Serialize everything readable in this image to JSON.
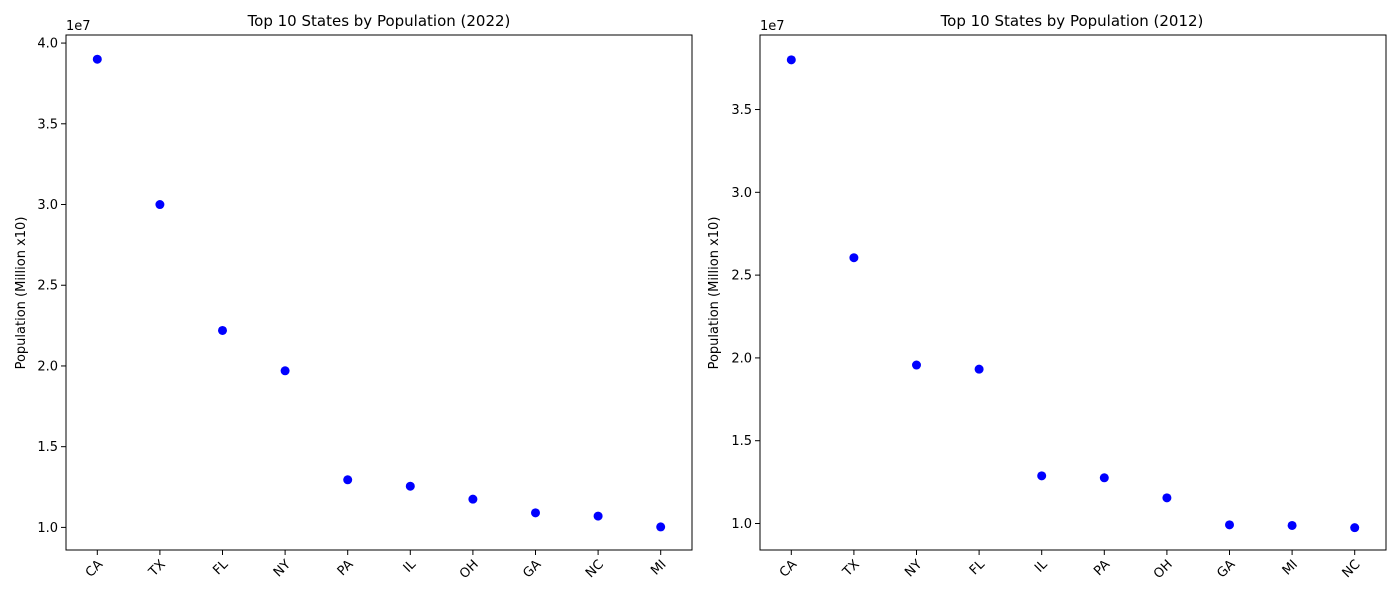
{
  "chart_data": [
    {
      "type": "scatter",
      "title": "Top 10 States by Population (2022)",
      "xlabel": "",
      "ylabel": "Population (Million x10)",
      "offset_text": "1e7",
      "categories": [
        "CA",
        "TX",
        "FL",
        "NY",
        "PA",
        "IL",
        "OH",
        "GA",
        "NC",
        "MI"
      ],
      "series": [
        {
          "values": [
            39000000,
            30000000,
            22200000,
            19700000,
            12950000,
            12550000,
            11750000,
            10900000,
            10700000,
            10030000
          ]
        }
      ],
      "ylim": [
        8600000,
        40500000
      ],
      "yticks": [
        10000000,
        15000000,
        20000000,
        25000000,
        30000000,
        35000000,
        40000000
      ],
      "ytick_labels": [
        "1.0",
        "1.5",
        "2.0",
        "2.5",
        "3.0",
        "3.5",
        "4.0"
      ],
      "grid": false,
      "legend": "none",
      "color": "#0000ff"
    },
    {
      "type": "scatter",
      "title": "Top 10 States by Population (2012)",
      "xlabel": "",
      "ylabel": "Population (Million x10)",
      "offset_text": "1e7",
      "categories": [
        "CA",
        "TX",
        "NY",
        "FL",
        "IL",
        "PA",
        "OH",
        "GA",
        "MI",
        "NC"
      ],
      "series": [
        {
          "values": [
            38000000,
            26050000,
            19570000,
            19320000,
            12880000,
            12760000,
            11550000,
            9920000,
            9880000,
            9750000
          ]
        }
      ],
      "ylim": [
        8400000,
        39500000
      ],
      "yticks": [
        10000000,
        15000000,
        20000000,
        25000000,
        30000000,
        35000000
      ],
      "ytick_labels": [
        "1.0",
        "1.5",
        "2.0",
        "2.5",
        "3.0",
        "3.5"
      ],
      "grid": false,
      "legend": "none",
      "color": "#0000ff"
    }
  ]
}
